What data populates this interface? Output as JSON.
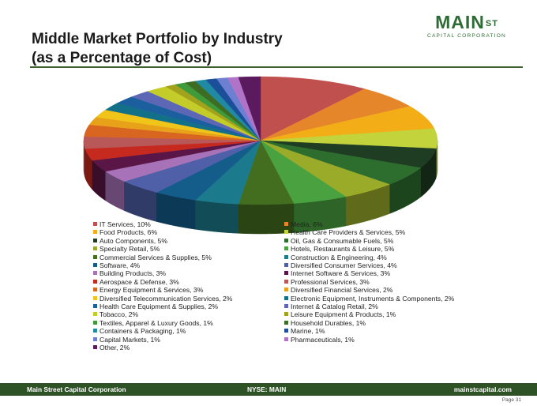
{
  "header": {
    "title_line1": "Middle Market Portfolio by Industry",
    "title_line2": "(as a Percentage of Cost)",
    "logo_word": "MAIN",
    "logo_sup": "ST",
    "logo_tagline": "CAPITAL CORPORATION"
  },
  "footer": {
    "left": "Main Street Capital Corporation",
    "center": "NYSE: MAIN",
    "right": "mainstcapital.com",
    "page": "Page  31"
  },
  "chart_data": {
    "type": "pie",
    "style": "3d",
    "title": "",
    "slices": [
      {
        "label": "IT Services, 10%",
        "value": 10,
        "color": "#c0504d"
      },
      {
        "label": "Media, 6%",
        "value": 6,
        "color": "#e6862a"
      },
      {
        "label": "Food Products, 6%",
        "value": 6,
        "color": "#f2ad17"
      },
      {
        "label": "Health Care Providers & Services, 5%",
        "value": 5,
        "color": "#c2d33b"
      },
      {
        "label": "Auto Components, 5%",
        "value": 5,
        "color": "#1f3d22"
      },
      {
        "label": "Oil, Gas & Consumable Fuels, 5%",
        "value": 5,
        "color": "#2d6e2e"
      },
      {
        "label": "Specialty Retail, 5%",
        "value": 5,
        "color": "#9aab2a"
      },
      {
        "label": "Hotels, Restaurants & Leisure, 5%",
        "value": 5,
        "color": "#4aa13f"
      },
      {
        "label": "Commercial Services & Supplies, 5%",
        "value": 5,
        "color": "#436e20"
      },
      {
        "label": "Construction & Engineering, 4%",
        "value": 4,
        "color": "#1b7b8c"
      },
      {
        "label": "Software, 4%",
        "value": 4,
        "color": "#145d8a"
      },
      {
        "label": "Diversified Consumer Services, 4%",
        "value": 4,
        "color": "#4f5fa8"
      },
      {
        "label": "Building Products, 3%",
        "value": 3,
        "color": "#a872b8"
      },
      {
        "label": "Internet Software & Services, 3%",
        "value": 3,
        "color": "#5a1646"
      },
      {
        "label": "Aerospace & Defense, 3%",
        "value": 3,
        "color": "#c62a1f"
      },
      {
        "label": "Professional Services, 3%",
        "value": 3,
        "color": "#b85858"
      },
      {
        "label": "Energy Equipment & Services, 3%",
        "value": 3,
        "color": "#d86520"
      },
      {
        "label": "Diversified Financial Services, 2%",
        "value": 2,
        "color": "#e8a21a"
      },
      {
        "label": "Diversified Telecommunication Services, 2%",
        "value": 2,
        "color": "#f0c419"
      },
      {
        "label": "Electronic Equipment, Instruments & Components, 2%",
        "value": 2,
        "color": "#137089"
      },
      {
        "label": "Health Care Equipment & Supplies, 2%",
        "value": 2,
        "color": "#1b5f9e"
      },
      {
        "label": "Internet & Catalog Retail, 2%",
        "value": 2,
        "color": "#5d67b5"
      },
      {
        "label": "Tobacco, 2%",
        "value": 2,
        "color": "#c4cc2a"
      },
      {
        "label": "Leisure Equipment & Products, 1%",
        "value": 1,
        "color": "#a2a21c"
      },
      {
        "label": "Textiles, Apparel & Luxury Goods, 1%",
        "value": 1,
        "color": "#3f9a3a"
      },
      {
        "label": "Household Durables, 1%",
        "value": 1,
        "color": "#3d6d22"
      },
      {
        "label": "Containers & Packaging, 1%",
        "value": 1,
        "color": "#1f8aa1"
      },
      {
        "label": "Marine, 1%",
        "value": 1,
        "color": "#1b4f9a"
      },
      {
        "label": "Capital Markets, 1%",
        "value": 1,
        "color": "#6d7fd0"
      },
      {
        "label": "Pharmaceuticals, 1%",
        "value": 1,
        "color": "#b073c8"
      },
      {
        "label": "Other, 2%",
        "value": 2,
        "color": "#5b1a5e"
      }
    ],
    "legend_position": "bottom"
  }
}
